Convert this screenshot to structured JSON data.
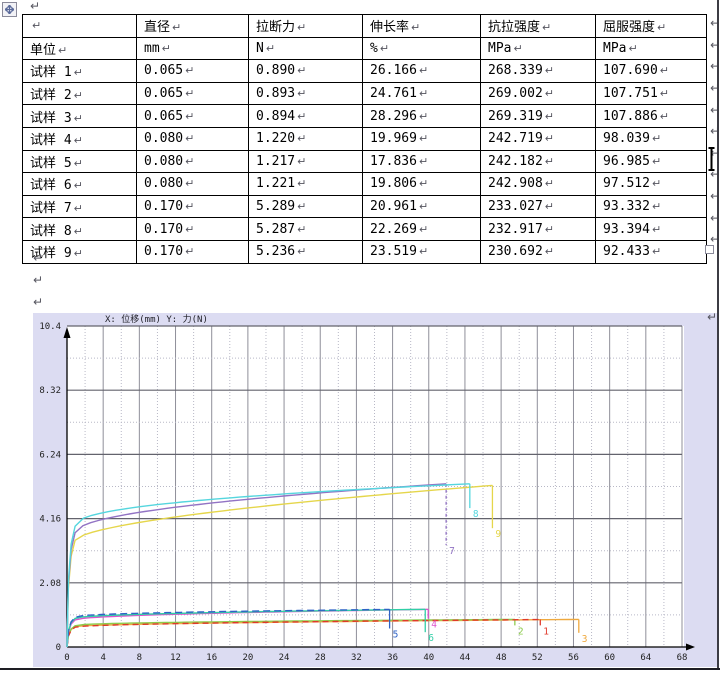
{
  "marks": {
    "pilcrow": "↵"
  },
  "table": {
    "header": [
      "",
      "直径",
      "拉断力",
      "伸长率",
      "抗拉强度",
      "屈服强度"
    ],
    "rows": [
      [
        "单位",
        "mm",
        "N",
        "%",
        "MPa",
        "MPa"
      ],
      [
        "试样 1",
        "0.065",
        "0.890",
        "26.166",
        "268.339",
        "107.690"
      ],
      [
        "试样 2",
        "0.065",
        "0.893",
        "24.761",
        "269.002",
        "107.751"
      ],
      [
        "试样 3",
        "0.065",
        "0.894",
        "28.296",
        "269.319",
        "107.886"
      ],
      [
        "试样 4",
        "0.080",
        "1.220",
        "19.969",
        "242.719",
        "98.039"
      ],
      [
        "试样 5",
        "0.080",
        "1.217",
        "17.836",
        "242.182",
        "96.985"
      ],
      [
        "试样 6",
        "0.080",
        "1.221",
        "19.806",
        "242.908",
        "97.512"
      ],
      [
        "试样 7",
        "0.170",
        "5.289",
        "20.961",
        "233.027",
        "93.332"
      ],
      [
        "试样 8",
        "0.170",
        "5.287",
        "22.269",
        "232.917",
        "93.394"
      ],
      [
        "试样 9",
        "0.170",
        "5.236",
        "23.519",
        "230.692",
        "92.433"
      ]
    ]
  },
  "chart_data": {
    "type": "line",
    "title": "X: 位移(mm)   Y: 力(N)",
    "xlabel": "位移(mm)",
    "ylabel": "力(N)",
    "xlim": [
      0,
      68
    ],
    "ylim": [
      0,
      10.4
    ],
    "x_tick_labels": [
      "0",
      "4",
      "8",
      "12",
      "16",
      "20",
      "24",
      "28",
      "32",
      "36",
      "40",
      "44",
      "48",
      "52",
      "56",
      "60",
      "64",
      "68"
    ],
    "x_tick_values": [
      0,
      4,
      8,
      12,
      16,
      20,
      24,
      28,
      32,
      36,
      40,
      44,
      48,
      52,
      56,
      60,
      64,
      68
    ],
    "x_minor_step": 2,
    "y_tick_labels": [
      "0",
      "2.08",
      "4.16",
      "6.24",
      "8.32",
      "10.4"
    ],
    "y_tick_values": [
      0,
      2.08,
      4.16,
      6.24,
      8.32,
      10.4
    ],
    "y_minor_values": [
      1.04,
      3.12,
      5.2,
      7.28,
      9.36
    ],
    "grid": true,
    "legend_position": "none",
    "colors": {
      "chart_bg": "#dcdcf2",
      "plot_bg": "#ffffff",
      "grid_major": "#8f8f9a",
      "grid_minor": "#b8b8c6",
      "grid_dark": "#63636d",
      "axis": "#000000",
      "title_text": "#22222a"
    },
    "series": [
      {
        "name": "3",
        "color": "#efa93f",
        "break_force_N": 0.894,
        "break_displacement_mm": 56.59,
        "drop_to_N": 0.46,
        "rise": 0.74,
        "shape_exp": 0.55
      },
      {
        "name": "2",
        "color": "#8ccb4d",
        "break_force_N": 0.893,
        "break_displacement_mm": 49.52,
        "drop_to_N": 0.7,
        "rise": 0.77,
        "shape_exp": 0.42
      },
      {
        "name": "1",
        "color": "#e0392b",
        "break_force_N": 0.89,
        "break_displacement_mm": 52.33,
        "drop_to_N": 0.7,
        "dash": "6,4",
        "rise": 0.72,
        "shape_exp": 0.5
      },
      {
        "name": "4",
        "color": "#dd55cc",
        "break_force_N": 1.22,
        "break_displacement_mm": 39.94,
        "drop_to_N": 0.92,
        "rise": 0.72,
        "shape_exp": 0.5
      },
      {
        "name": "6",
        "color": "#30cfa6",
        "break_force_N": 1.221,
        "break_displacement_mm": 39.61,
        "drop_to_N": 0.48,
        "rise": 0.76,
        "shape_exp": 0.48
      },
      {
        "name": "5",
        "color": "#2e62c6",
        "break_force_N": 1.217,
        "break_displacement_mm": 35.67,
        "drop_to_N": 0.6,
        "dash": "7,4",
        "rise": 0.79,
        "shape_exp": 0.42
      },
      {
        "name": "9",
        "color": "#e5d64b",
        "break_force_N": 5.236,
        "break_displacement_mm": 47.04,
        "drop_to_N": 3.85,
        "rise": 0.66,
        "shape_exp": 0.6
      },
      {
        "name": "7",
        "color": "#9273c4",
        "break_force_N": 5.289,
        "break_displacement_mm": 41.92,
        "drop_to_N": 3.3,
        "drop_dash": "3,3",
        "rise": 0.7,
        "shape_exp": 0.5
      },
      {
        "name": "8",
        "color": "#55d6de",
        "break_force_N": 5.287,
        "break_displacement_mm": 44.54,
        "drop_to_N": 4.5,
        "rise": 0.74,
        "shape_exp": 0.43
      }
    ]
  }
}
